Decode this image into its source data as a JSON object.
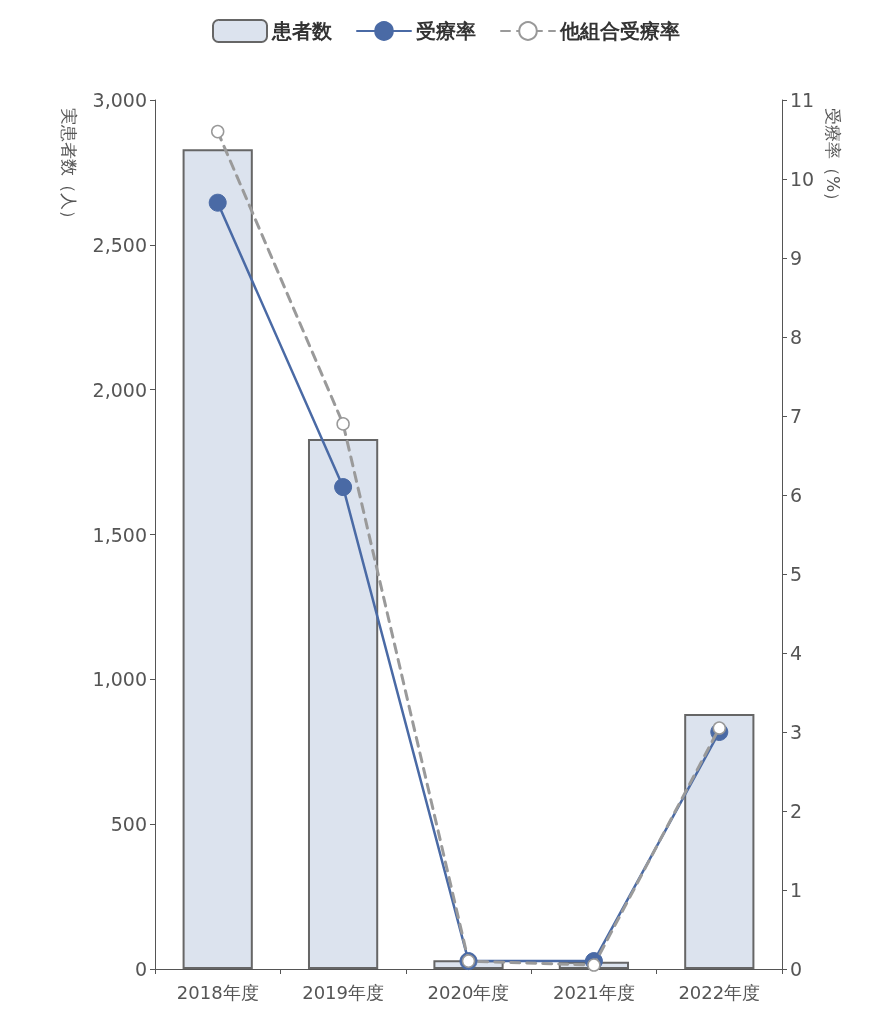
{
  "chart_data": {
    "type": "bar",
    "ylabel": "実患者数（人）",
    "y2label": "受療率（%）",
    "categories": [
      "2018年度",
      "2019年度",
      "2020年度",
      "2021年度",
      "2022年度"
    ],
    "series": [
      {
        "name": "患者数",
        "color": "#dce3ee",
        "values": [
          2830,
          1830,
          30,
          25,
          880
        ]
      },
      {
        "name": "受療率",
        "type": "line",
        "axis": "y2",
        "color": "#4a6aa5",
        "marker": "circle",
        "line_style": "solid",
        "values": [
          9.7,
          6.1,
          0.1,
          0.1,
          3.0
        ]
      },
      {
        "name": "他組合受療率",
        "type": "line",
        "axis": "y2",
        "color": "#9a9a9a",
        "marker": "circle",
        "line_style": "dashed",
        "values": [
          10.6,
          6.9,
          0.1,
          0.05,
          3.05
        ]
      }
    ],
    "ylim": [
      0,
      3000
    ],
    "yticks": [
      0,
      500,
      {
        "value": 1000,
        "label": "1,000"
      },
      {
        "value": 1500,
        "label": "1,500"
      },
      {
        "value": 2000,
        "label": "2,000"
      },
      {
        "value": 2500,
        "label": "2,500"
      },
      {
        "value": 3000,
        "label": "3,000"
      }
    ],
    "y2lim": [
      0,
      11
    ],
    "y2ticks": [
      0,
      1,
      2,
      3,
      4,
      5,
      6,
      7,
      8,
      9,
      10,
      11
    ],
    "legend": "top",
    "grid": false
  }
}
